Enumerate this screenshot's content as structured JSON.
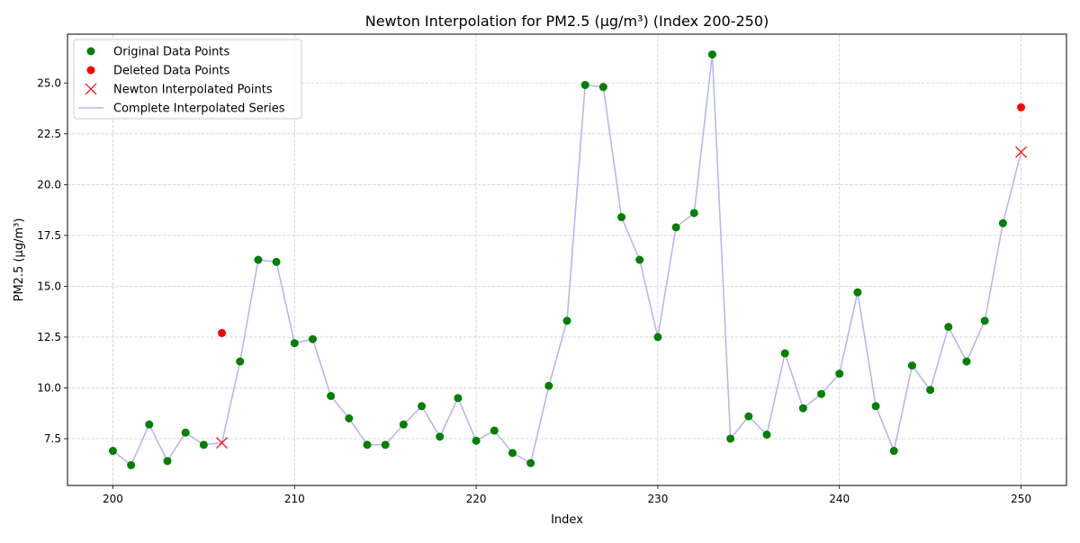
{
  "chart_data": {
    "type": "line",
    "title": "Newton Interpolation for PM2.5 (μg/m³) (Index 200-250)",
    "xlabel": "Index",
    "ylabel": "PM2.5 (μg/m³)",
    "xlim": [
      197.5,
      252.5
    ],
    "ylim": [
      5.2,
      27.4
    ],
    "x_ticks": [
      200,
      210,
      220,
      230,
      240,
      250
    ],
    "x_tick_labels": [
      "200",
      "210",
      "220",
      "230",
      "240",
      "250"
    ],
    "y_ticks": [
      7.5,
      10.0,
      12.5,
      15.0,
      17.5,
      20.0,
      22.5,
      25.0
    ],
    "y_tick_labels": [
      "7.5",
      "10.0",
      "12.5",
      "15.0",
      "17.5",
      "20.0",
      "22.5",
      "25.0"
    ],
    "grid": true,
    "legend_position": "upper-left",
    "legend": [
      {
        "label": "Original Data Points",
        "marker": "circle",
        "color": "#008000"
      },
      {
        "label": "Deleted Data Points",
        "marker": "circle",
        "color": "#ff0000"
      },
      {
        "label": "Newton Interpolated Points",
        "marker": "x",
        "color": "#ff0000"
      },
      {
        "label": "Complete Interpolated Series",
        "marker": "line",
        "color": "#b3b3f2"
      }
    ],
    "series": [
      {
        "name": "Original Data Points",
        "marker": "circle",
        "color": "#008000",
        "x": [
          200,
          201,
          202,
          203,
          204,
          205,
          207,
          208,
          209,
          210,
          211,
          212,
          213,
          214,
          215,
          216,
          217,
          218,
          219,
          220,
          221,
          222,
          223,
          224,
          225,
          226,
          227,
          228,
          229,
          230,
          231,
          232,
          233,
          234,
          235,
          236,
          237,
          238,
          239,
          240,
          241,
          242,
          243,
          244,
          245,
          246,
          247,
          248,
          249
        ],
        "y": [
          6.9,
          6.2,
          8.2,
          6.4,
          7.8,
          7.2,
          11.3,
          16.3,
          16.2,
          12.2,
          12.4,
          9.6,
          8.5,
          7.2,
          7.2,
          8.2,
          9.1,
          7.6,
          9.5,
          7.4,
          7.9,
          6.8,
          6.3,
          10.1,
          13.3,
          24.9,
          24.8,
          18.4,
          16.3,
          12.5,
          17.9,
          18.6,
          26.4,
          7.5,
          8.6,
          7.7,
          11.7,
          9.0,
          9.7,
          10.7,
          14.7,
          9.1,
          6.9,
          11.1,
          9.9,
          13.0,
          11.3,
          13.3,
          18.1
        ]
      },
      {
        "name": "Deleted Data Points",
        "marker": "circle",
        "color": "#ff0000",
        "x": [
          206,
          250
        ],
        "y": [
          12.7,
          23.8
        ]
      },
      {
        "name": "Newton Interpolated Points",
        "marker": "x",
        "color": "#ff0000",
        "x": [
          206,
          250
        ],
        "y": [
          7.3,
          21.6
        ]
      },
      {
        "name": "Complete Interpolated Series",
        "marker": "line",
        "color": "#b3b3f2",
        "x": [
          200,
          201,
          202,
          203,
          204,
          205,
          206,
          207,
          208,
          209,
          210,
          211,
          212,
          213,
          214,
          215,
          216,
          217,
          218,
          219,
          220,
          221,
          222,
          223,
          224,
          225,
          226,
          227,
          228,
          229,
          230,
          231,
          232,
          233,
          234,
          235,
          236,
          237,
          238,
          239,
          240,
          241,
          242,
          243,
          244,
          245,
          246,
          247,
          248,
          249,
          250
        ],
        "y": [
          6.9,
          6.2,
          8.2,
          6.4,
          7.8,
          7.2,
          7.3,
          11.3,
          16.3,
          16.2,
          12.2,
          12.4,
          9.6,
          8.5,
          7.2,
          7.2,
          8.2,
          9.1,
          7.6,
          9.5,
          7.4,
          7.9,
          6.8,
          6.3,
          10.1,
          13.3,
          24.9,
          24.8,
          18.4,
          16.3,
          12.5,
          17.9,
          18.6,
          26.4,
          7.5,
          8.6,
          7.7,
          11.7,
          9.0,
          9.7,
          10.7,
          14.7,
          9.1,
          6.9,
          11.1,
          9.9,
          13.0,
          11.3,
          13.3,
          18.1,
          21.6
        ]
      }
    ]
  }
}
